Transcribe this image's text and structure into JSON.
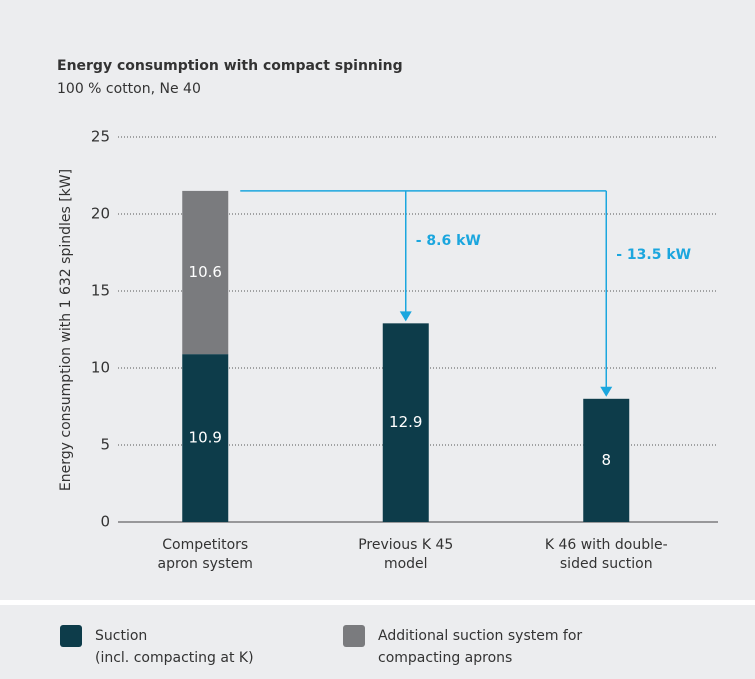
{
  "chart_data": {
    "type": "stacked_bar",
    "title": "Energy consumption with compact spinning",
    "subtitle": "100 % cotton, Ne 40",
    "y_label": "Energy consumption with 1 632 spindles [kW]",
    "categories": [
      [
        "Competitors",
        "apron system"
      ],
      [
        "Previous K 45",
        "model"
      ],
      [
        "K 46 with double-",
        "sided suction"
      ]
    ],
    "series": [
      {
        "name": [
          "Suction",
          "(incl. compacting at K)"
        ],
        "color": "#0d3c4a",
        "values": [
          10.9,
          12.9,
          8
        ]
      },
      {
        "name": [
          "Additional suction system for",
          "compacting aprons"
        ],
        "color": "#7a7b7e",
        "values": [
          10.6,
          null,
          null
        ]
      }
    ],
    "ylim": [
      0,
      25
    ],
    "yticks": [
      0,
      5,
      10,
      15,
      20,
      25
    ],
    "grid": true,
    "annotations": [
      {
        "text": "- 8.6 kW",
        "color": "#1ba6de"
      },
      {
        "text": "- 13.5 kW",
        "color": "#1ba6de"
      }
    ]
  }
}
